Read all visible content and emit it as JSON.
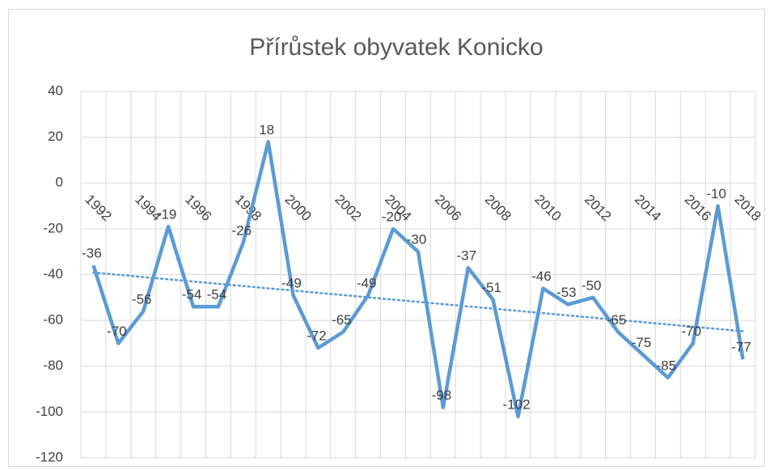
{
  "chart_data": {
    "type": "line",
    "title": "Přírůstek obyvatek Konicko",
    "categories": [
      "1992",
      null,
      "1994",
      null,
      "1996",
      null,
      "1998",
      null,
      "2000",
      null,
      "2002",
      null,
      "2004",
      null,
      "2006",
      null,
      "2008",
      null,
      "2010",
      null,
      "2012",
      null,
      "2014",
      null,
      "2016",
      null,
      "2018"
    ],
    "series": [
      {
        "color": "#5b9bd5",
        "values": [
          -36,
          -70,
          -56,
          -19,
          -54,
          -54,
          -26,
          18,
          -49,
          -72,
          -65,
          -49,
          -20,
          -30,
          -98,
          -37,
          -51,
          -102,
          -46,
          -53,
          -50,
          -65,
          -75,
          -85,
          -70,
          -10,
          -77
        ]
      }
    ],
    "trendline": "linear",
    "ylim": [
      -120,
      40
    ],
    "yticks": [
      -120,
      -100,
      -80,
      -60,
      -40,
      -20,
      0,
      20,
      40
    ],
    "grid": true
  }
}
